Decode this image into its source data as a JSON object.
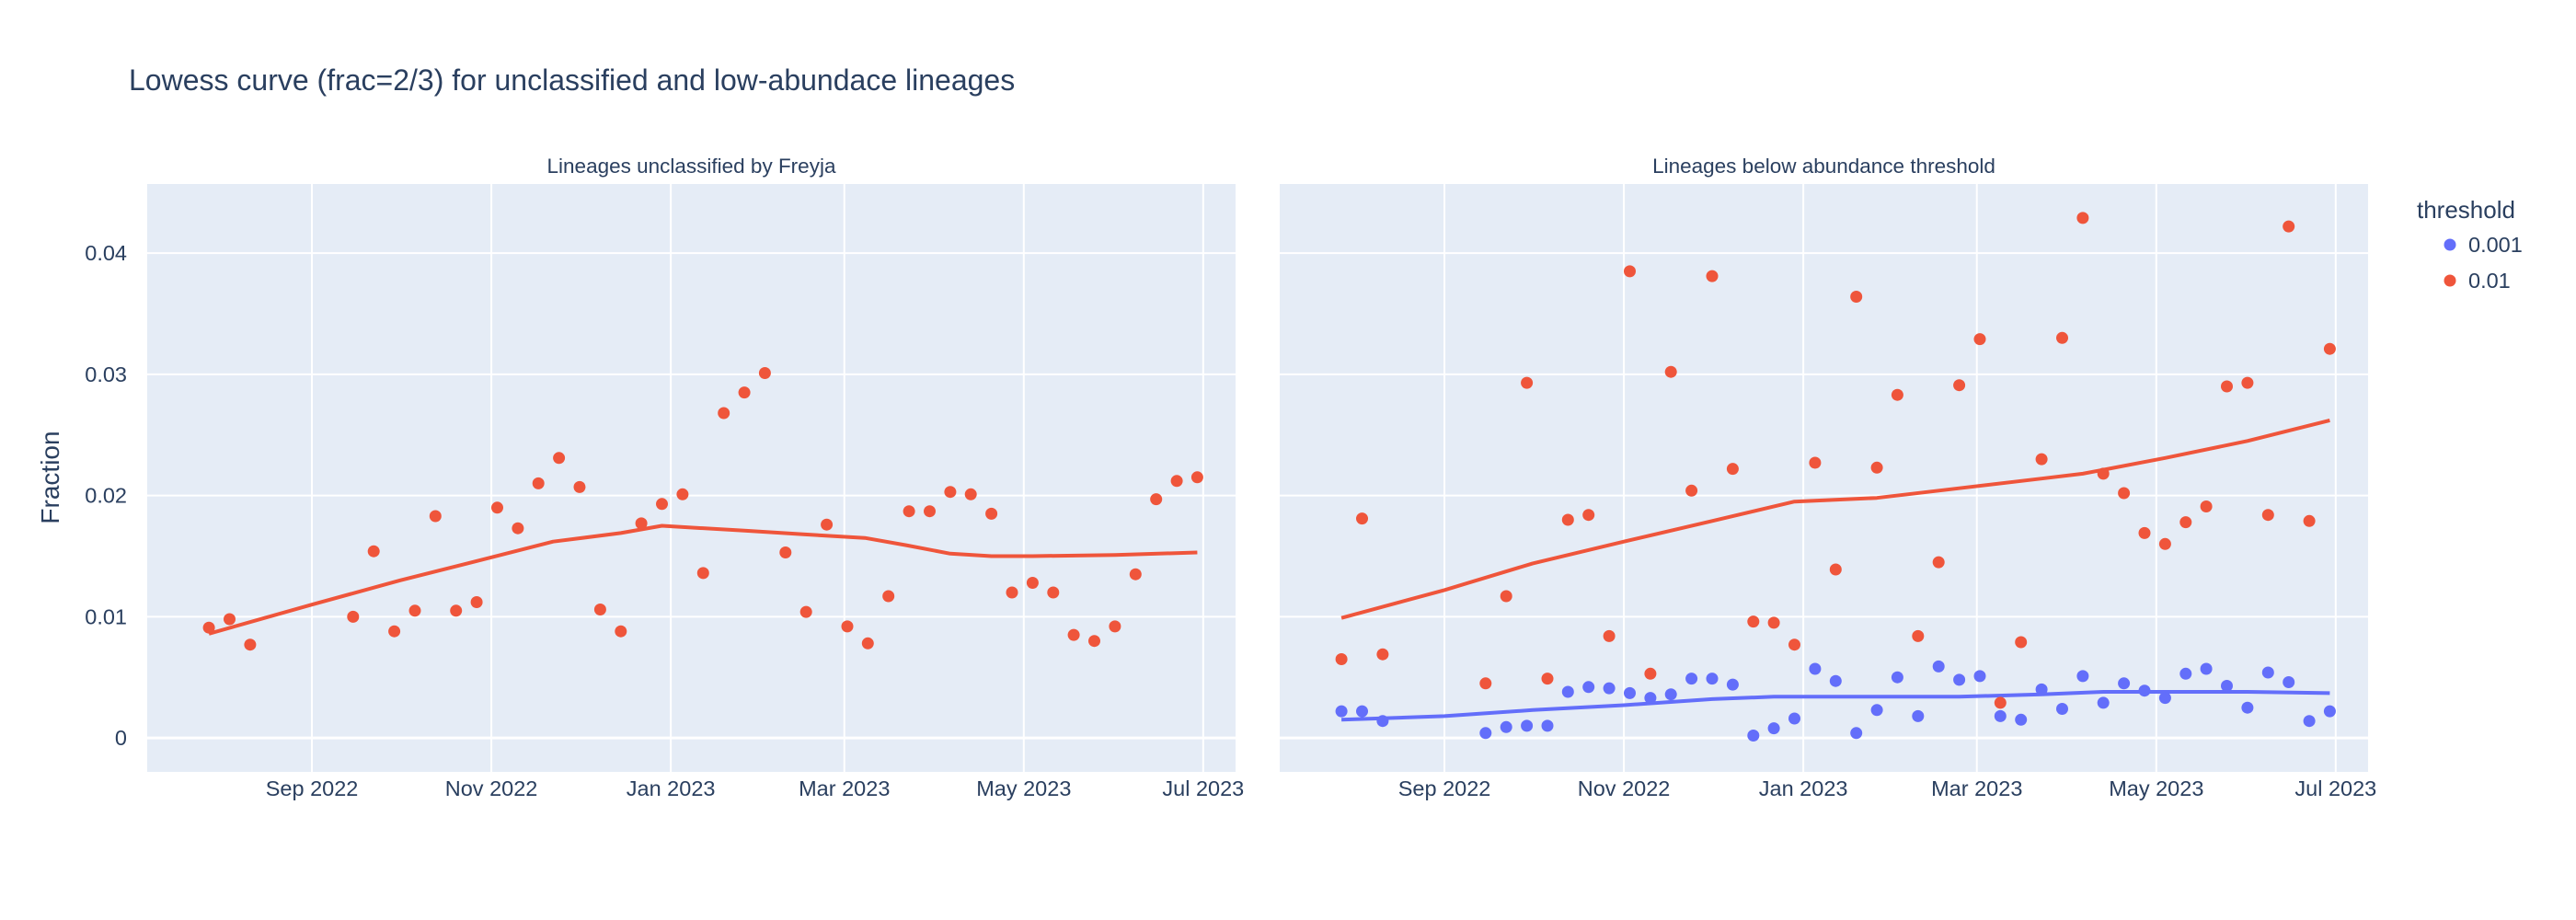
{
  "chart_data": {
    "type": "scatter",
    "title": "Lowess curve (frac=2/3) for unclassified and low-abundace lineages",
    "ylabel": "Fraction",
    "ylim": [
      -0.0028,
      0.0457
    ],
    "y_ticks": [
      0,
      0.01,
      0.02,
      0.03,
      0.04
    ],
    "y_tick_labels": [
      "0",
      "0.01",
      "0.02",
      "0.03",
      "0.04"
    ],
    "xlim": [
      "2022-07-07",
      "2023-07-12"
    ],
    "x_ticks": [
      "2022-09-01",
      "2022-11-01",
      "2023-01-01",
      "2023-03-01",
      "2023-05-01",
      "2023-07-01"
    ],
    "x_tick_labels": [
      "Sep 2022",
      "Nov 2022",
      "Jan 2023",
      "Mar 2023",
      "May 2023",
      "Jul 2023"
    ],
    "legend": {
      "title": "threshold",
      "entries": [
        {
          "label": "0.001",
          "color": "#636efa"
        },
        {
          "label": "0.01",
          "color": "#ef553b"
        }
      ]
    },
    "subplots": [
      {
        "title": "Lineages unclassified by Freyja",
        "series": [
          {
            "name": "0.01",
            "color": "#ef553b",
            "points": [
              [
                "2022-07-28",
                0.0091
              ],
              [
                "2022-08-04",
                0.0098
              ],
              [
                "2022-08-11",
                0.0077
              ],
              [
                "2022-09-15",
                0.01
              ],
              [
                "2022-09-22",
                0.0154
              ],
              [
                "2022-09-29",
                0.0088
              ],
              [
                "2022-10-06",
                0.0105
              ],
              [
                "2022-10-13",
                0.0183
              ],
              [
                "2022-10-20",
                0.0105
              ],
              [
                "2022-10-27",
                0.0112
              ],
              [
                "2022-11-03",
                0.019
              ],
              [
                "2022-11-10",
                0.0173
              ],
              [
                "2022-11-17",
                0.021
              ],
              [
                "2022-11-24",
                0.0231
              ],
              [
                "2022-12-01",
                0.0207
              ],
              [
                "2022-12-08",
                0.0106
              ],
              [
                "2022-12-15",
                0.0088
              ],
              [
                "2022-12-22",
                0.0177
              ],
              [
                "2022-12-29",
                0.0193
              ],
              [
                "2023-01-05",
                0.0201
              ],
              [
                "2023-01-12",
                0.0136
              ],
              [
                "2023-01-19",
                0.0268
              ],
              [
                "2023-01-26",
                0.0285
              ],
              [
                "2023-02-02",
                0.0301
              ],
              [
                "2023-02-09",
                0.0153
              ],
              [
                "2023-02-16",
                0.0104
              ],
              [
                "2023-02-23",
                0.0176
              ],
              [
                "2023-03-02",
                0.0092
              ],
              [
                "2023-03-09",
                0.0078
              ],
              [
                "2023-03-16",
                0.0117
              ],
              [
                "2023-03-23",
                0.0187
              ],
              [
                "2023-03-30",
                0.0187
              ],
              [
                "2023-04-06",
                0.0203
              ],
              [
                "2023-04-13",
                0.0201
              ],
              [
                "2023-04-20",
                0.0185
              ],
              [
                "2023-04-27",
                0.012
              ],
              [
                "2023-05-04",
                0.0128
              ],
              [
                "2023-05-11",
                0.012
              ],
              [
                "2023-05-18",
                0.0085
              ],
              [
                "2023-05-25",
                0.008
              ],
              [
                "2023-06-01",
                0.0092
              ],
              [
                "2023-06-08",
                0.0135
              ],
              [
                "2023-06-15",
                0.0197
              ],
              [
                "2023-06-22",
                0.0212
              ],
              [
                "2023-06-29",
                0.0215
              ]
            ],
            "curve": [
              [
                "2022-07-28",
                0.0086
              ],
              [
                "2022-09-01",
                0.011
              ],
              [
                "2022-10-01",
                0.013
              ],
              [
                "2022-11-01",
                0.0149
              ],
              [
                "2022-11-22",
                0.0162
              ],
              [
                "2022-12-15",
                0.0169
              ],
              [
                "2022-12-29",
                0.0175
              ],
              [
                "2023-01-26",
                0.0171
              ],
              [
                "2023-02-15",
                0.0168
              ],
              [
                "2023-03-08",
                0.0165
              ],
              [
                "2023-03-22",
                0.0159
              ],
              [
                "2023-04-06",
                0.0152
              ],
              [
                "2023-04-20",
                0.015
              ],
              [
                "2023-05-04",
                0.015
              ],
              [
                "2023-06-01",
                0.0151
              ],
              [
                "2023-06-29",
                0.0153
              ]
            ]
          }
        ]
      },
      {
        "title": "Lineages below abundance threshold",
        "series": [
          {
            "name": "0.001",
            "color": "#636efa",
            "points": [
              [
                "2022-07-28",
                0.0022
              ],
              [
                "2022-08-04",
                0.0022
              ],
              [
                "2022-08-11",
                0.0014
              ],
              [
                "2022-09-15",
                0.0004
              ],
              [
                "2022-09-22",
                0.0009
              ],
              [
                "2022-09-29",
                0.001
              ],
              [
                "2022-10-06",
                0.001
              ],
              [
                "2022-10-13",
                0.0038
              ],
              [
                "2022-10-20",
                0.0042
              ],
              [
                "2022-10-27",
                0.0041
              ],
              [
                "2022-11-03",
                0.0037
              ],
              [
                "2022-11-10",
                0.0033
              ],
              [
                "2022-11-17",
                0.0036
              ],
              [
                "2022-11-24",
                0.0049
              ],
              [
                "2022-12-01",
                0.0049
              ],
              [
                "2022-12-08",
                0.0044
              ],
              [
                "2022-12-15",
                0.0002
              ],
              [
                "2022-12-22",
                0.0008
              ],
              [
                "2022-12-29",
                0.0016
              ],
              [
                "2023-01-05",
                0.0057
              ],
              [
                "2023-01-12",
                0.0047
              ],
              [
                "2023-01-19",
                0.0004
              ],
              [
                "2023-01-26",
                0.0023
              ],
              [
                "2023-02-02",
                0.005
              ],
              [
                "2023-02-09",
                0.0018
              ],
              [
                "2023-02-16",
                0.0059
              ],
              [
                "2023-02-23",
                0.0048
              ],
              [
                "2023-03-02",
                0.0051
              ],
              [
                "2023-03-09",
                0.0018
              ],
              [
                "2023-03-16",
                0.0015
              ],
              [
                "2023-03-23",
                0.004
              ],
              [
                "2023-03-30",
                0.0024
              ],
              [
                "2023-04-06",
                0.0051
              ],
              [
                "2023-04-13",
                0.0029
              ],
              [
                "2023-04-20",
                0.0045
              ],
              [
                "2023-04-27",
                0.0039
              ],
              [
                "2023-05-04",
                0.0033
              ],
              [
                "2023-05-11",
                0.0053
              ],
              [
                "2023-05-18",
                0.0057
              ],
              [
                "2023-05-25",
                0.0043
              ],
              [
                "2023-06-01",
                0.0025
              ],
              [
                "2023-06-08",
                0.0054
              ],
              [
                "2023-06-15",
                0.0046
              ],
              [
                "2023-06-22",
                0.0014
              ],
              [
                "2023-06-29",
                0.0022
              ]
            ],
            "curve": [
              [
                "2022-07-28",
                0.0015
              ],
              [
                "2022-09-01",
                0.0018
              ],
              [
                "2022-10-01",
                0.0023
              ],
              [
                "2022-11-01",
                0.0027
              ],
              [
                "2022-12-01",
                0.0032
              ],
              [
                "2022-12-22",
                0.0034
              ],
              [
                "2023-01-26",
                0.0034
              ],
              [
                "2023-02-23",
                0.0034
              ],
              [
                "2023-03-23",
                0.0036
              ],
              [
                "2023-04-13",
                0.0038
              ],
              [
                "2023-05-04",
                0.0038
              ],
              [
                "2023-06-01",
                0.0038
              ],
              [
                "2023-06-29",
                0.0037
              ]
            ]
          },
          {
            "name": "0.01",
            "color": "#ef553b",
            "points": [
              [
                "2022-07-28",
                0.0065
              ],
              [
                "2022-08-04",
                0.0181
              ],
              [
                "2022-08-11",
                0.0069
              ],
              [
                "2022-09-15",
                0.0045
              ],
              [
                "2022-09-22",
                0.0117
              ],
              [
                "2022-09-29",
                0.0293
              ],
              [
                "2022-10-06",
                0.0049
              ],
              [
                "2022-10-13",
                0.018
              ],
              [
                "2022-10-20",
                0.0184
              ],
              [
                "2022-10-27",
                0.0084
              ],
              [
                "2022-11-03",
                0.0385
              ],
              [
                "2022-11-10",
                0.0053
              ],
              [
                "2022-11-17",
                0.0302
              ],
              [
                "2022-11-24",
                0.0204
              ],
              [
                "2022-12-01",
                0.0381
              ],
              [
                "2022-12-08",
                0.0222
              ],
              [
                "2022-12-15",
                0.0096
              ],
              [
                "2022-12-22",
                0.0095
              ],
              [
                "2022-12-29",
                0.0077
              ],
              [
                "2023-01-05",
                0.0227
              ],
              [
                "2023-01-12",
                0.0139
              ],
              [
                "2023-01-19",
                0.0364
              ],
              [
                "2023-01-26",
                0.0223
              ],
              [
                "2023-02-02",
                0.0283
              ],
              [
                "2023-02-09",
                0.0084
              ],
              [
                "2023-02-16",
                0.0145
              ],
              [
                "2023-02-23",
                0.0291
              ],
              [
                "2023-03-02",
                0.0329
              ],
              [
                "2023-03-09",
                0.0029
              ],
              [
                "2023-03-16",
                0.0079
              ],
              [
                "2023-03-23",
                0.023
              ],
              [
                "2023-03-30",
                0.033
              ],
              [
                "2023-04-06",
                0.0429
              ],
              [
                "2023-04-13",
                0.0218
              ],
              [
                "2023-04-20",
                0.0202
              ],
              [
                "2023-04-27",
                0.0169
              ],
              [
                "2023-05-04",
                0.016
              ],
              [
                "2023-05-11",
                0.0178
              ],
              [
                "2023-05-18",
                0.0191
              ],
              [
                "2023-05-25",
                0.029
              ],
              [
                "2023-06-01",
                0.0293
              ],
              [
                "2023-06-08",
                0.0184
              ],
              [
                "2023-06-15",
                0.0422
              ],
              [
                "2023-06-22",
                0.0179
              ],
              [
                "2023-06-29",
                0.0321
              ]
            ],
            "curve": [
              [
                "2022-07-28",
                0.0099
              ],
              [
                "2022-09-01",
                0.0122
              ],
              [
                "2022-10-01",
                0.0144
              ],
              [
                "2022-11-01",
                0.0162
              ],
              [
                "2022-12-01",
                0.0179
              ],
              [
                "2022-12-29",
                0.0195
              ],
              [
                "2023-01-26",
                0.0198
              ],
              [
                "2023-02-23",
                0.0206
              ],
              [
                "2023-03-23",
                0.0214
              ],
              [
                "2023-04-06",
                0.0218
              ],
              [
                "2023-05-04",
                0.0231
              ],
              [
                "2023-06-01",
                0.0245
              ],
              [
                "2023-06-29",
                0.0262
              ]
            ]
          }
        ]
      }
    ]
  }
}
